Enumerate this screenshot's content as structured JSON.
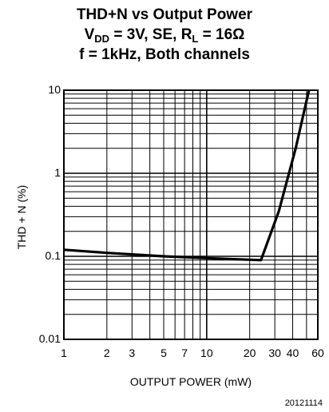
{
  "chart_data": {
    "type": "line",
    "title": [
      "THD+N vs Output Power",
      "f = 1kHz, Both channels"
    ],
    "subtitle_parts": {
      "vdd_sym": "V",
      "vdd_sub": "DD",
      "vdd_val": " = 3V, SE, ",
      "rl_sym": "R",
      "rl_sub": "L",
      "rl_val": " = 16Ω"
    },
    "xlabel": "OUTPUT POWER (mW)",
    "ylabel": "THD + N (%)",
    "xscale": "log",
    "yscale": "log",
    "xlim": [
      1,
      60
    ],
    "ylim": [
      0.01,
      10
    ],
    "grid": true,
    "x_ticks": [
      1,
      2,
      3,
      5,
      7,
      10,
      20,
      30,
      40,
      60
    ],
    "x_tick_labels": [
      "1",
      "2",
      "3",
      "5",
      "7",
      "10",
      "20",
      "30",
      "40",
      "60"
    ],
    "y_ticks": [
      0.01,
      0.1,
      1,
      10
    ],
    "y_tick_labels": [
      "0.01",
      "0.1",
      "1",
      "10"
    ],
    "series": [
      {
        "x": [
          1,
          2,
          5,
          10,
          24,
          32,
          42,
          52
        ],
        "y": [
          0.12,
          0.11,
          0.1,
          0.095,
          0.09,
          0.35,
          2,
          10
        ]
      }
    ]
  },
  "figure_id": "20121114"
}
